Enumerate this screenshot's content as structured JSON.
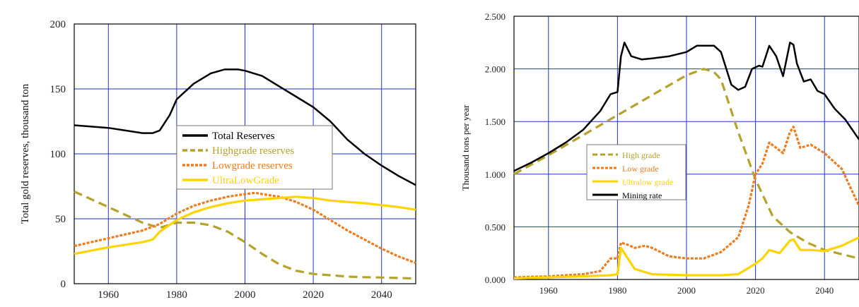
{
  "colors": {
    "total": "#000000",
    "high": "#b5a22c",
    "low": "#f07b1d",
    "ultra": "#ffd400",
    "grid": "#2233cc",
    "axis": "#000000"
  },
  "chart_data": [
    {
      "type": "line",
      "title": "",
      "xlabel": "",
      "ylabel": "Total gold reserves, thousand ton",
      "xlim": [
        1950,
        2050
      ],
      "ylim": [
        0,
        200
      ],
      "x_ticks": [
        1960,
        1980,
        2000,
        2020,
        2040
      ],
      "y_ticks": [
        0,
        50,
        100,
        150,
        200
      ],
      "grid": true,
      "legend_position": "center",
      "series": [
        {
          "name": "Total Reserves",
          "color_key": "total",
          "dash": "solid",
          "points": [
            [
              1950,
              122
            ],
            [
              1955,
              121
            ],
            [
              1960,
              120
            ],
            [
              1965,
              118
            ],
            [
              1970,
              116
            ],
            [
              1973,
              116
            ],
            [
              1975,
              118
            ],
            [
              1978,
              130
            ],
            [
              1980,
              142
            ],
            [
              1985,
              154
            ],
            [
              1990,
              162
            ],
            [
              1994,
              165
            ],
            [
              1998,
              165
            ],
            [
              2000,
              164
            ],
            [
              2005,
              160
            ],
            [
              2010,
              152
            ],
            [
              2015,
              144
            ],
            [
              2020,
              136
            ],
            [
              2025,
              125
            ],
            [
              2030,
              111
            ],
            [
              2035,
              100
            ],
            [
              2040,
              91
            ],
            [
              2045,
              83
            ],
            [
              2050,
              76
            ]
          ]
        },
        {
          "name": "Highgrade reserves",
          "color_key": "high",
          "dash": "dashed",
          "points": [
            [
              1950,
              71
            ],
            [
              1955,
              65
            ],
            [
              1960,
              59
            ],
            [
              1965,
              53
            ],
            [
              1970,
              47
            ],
            [
              1975,
              43
            ],
            [
              1980,
              47
            ],
            [
              1985,
              47
            ],
            [
              1990,
              45
            ],
            [
              1995,
              40
            ],
            [
              2000,
              32
            ],
            [
              2005,
              23
            ],
            [
              2010,
              15
            ],
            [
              2015,
              10
            ],
            [
              2020,
              7.5
            ],
            [
              2025,
              6.5
            ],
            [
              2030,
              5.5
            ],
            [
              2035,
              5
            ],
            [
              2040,
              4.8
            ],
            [
              2045,
              4.4
            ],
            [
              2050,
              4
            ]
          ]
        },
        {
          "name": "Lowgrade reserves",
          "color_key": "low",
          "dash": "dotted",
          "points": [
            [
              1950,
              29
            ],
            [
              1955,
              32
            ],
            [
              1960,
              35
            ],
            [
              1965,
              38
            ],
            [
              1970,
              41
            ],
            [
              1975,
              46
            ],
            [
              1980,
              54
            ],
            [
              1985,
              60
            ],
            [
              1990,
              64
            ],
            [
              1995,
              67
            ],
            [
              2000,
              69
            ],
            [
              2003,
              70
            ],
            [
              2005,
              69
            ],
            [
              2010,
              67
            ],
            [
              2015,
              63
            ],
            [
              2020,
              57
            ],
            [
              2025,
              49
            ],
            [
              2030,
              41
            ],
            [
              2035,
              34
            ],
            [
              2040,
              27
            ],
            [
              2045,
              21
            ],
            [
              2050,
              16
            ]
          ]
        },
        {
          "name": "UltraLowGrade",
          "color_key": "ultra",
          "dash": "solid",
          "points": [
            [
              1950,
              23
            ],
            [
              1955,
              25.5
            ],
            [
              1960,
              28
            ],
            [
              1965,
              30
            ],
            [
              1970,
              32
            ],
            [
              1973,
              34
            ],
            [
              1975,
              40
            ],
            [
              1980,
              49
            ],
            [
              1985,
              55
            ],
            [
              1990,
              59
            ],
            [
              1995,
              62
            ],
            [
              2000,
              64
            ],
            [
              2005,
              65
            ],
            [
              2010,
              66
            ],
            [
              2015,
              67
            ],
            [
              2020,
              66
            ],
            [
              2025,
              64
            ],
            [
              2030,
              63
            ],
            [
              2035,
              62
            ],
            [
              2040,
              60.5
            ],
            [
              2045,
              59
            ],
            [
              2050,
              57
            ]
          ]
        }
      ]
    },
    {
      "type": "line",
      "title": "",
      "xlabel": "",
      "ylabel": "Thousand tons per year",
      "xlim": [
        1950,
        2050
      ],
      "ylim": [
        0,
        2.5
      ],
      "x_ticks": [
        1960,
        1980,
        2000,
        2020,
        2040
      ],
      "y_tick_labels": [
        "0.000",
        "0.500",
        "1.000",
        "1.500",
        "2.000",
        "2.500"
      ],
      "y_ticks": [
        0,
        0.5,
        1.0,
        1.5,
        2.0,
        2.5
      ],
      "grid": true,
      "legend_position": "center-left",
      "series": [
        {
          "name": "High grade",
          "color_key": "high",
          "dash": "dashed",
          "points": [
            [
              1950,
              1.0
            ],
            [
              1960,
              1.18
            ],
            [
              1970,
              1.37
            ],
            [
              1980,
              1.56
            ],
            [
              1990,
              1.75
            ],
            [
              2000,
              1.94
            ],
            [
              2005,
              2.0
            ],
            [
              2008,
              1.97
            ],
            [
              2010,
              1.9
            ],
            [
              2013,
              1.6
            ],
            [
              2015,
              1.4
            ],
            [
              2020,
              0.95
            ],
            [
              2025,
              0.6
            ],
            [
              2030,
              0.45
            ],
            [
              2035,
              0.35
            ],
            [
              2040,
              0.28
            ],
            [
              2045,
              0.24
            ],
            [
              2050,
              0.2
            ]
          ]
        },
        {
          "name": "Low grade",
          "color_key": "low",
          "dash": "dotted",
          "points": [
            [
              1950,
              0.02
            ],
            [
              1960,
              0.03
            ],
            [
              1970,
              0.05
            ],
            [
              1975,
              0.08
            ],
            [
              1978,
              0.2
            ],
            [
              1980,
              0.2
            ],
            [
              1981,
              0.35
            ],
            [
              1983,
              0.33
            ],
            [
              1985,
              0.3
            ],
            [
              1988,
              0.32
            ],
            [
              1990,
              0.3
            ],
            [
              1995,
              0.22
            ],
            [
              2000,
              0.2
            ],
            [
              2005,
              0.2
            ],
            [
              2010,
              0.26
            ],
            [
              2015,
              0.4
            ],
            [
              2018,
              0.7
            ],
            [
              2020,
              1.0
            ],
            [
              2022,
              1.1
            ],
            [
              2024,
              1.3
            ],
            [
              2026,
              1.25
            ],
            [
              2028,
              1.2
            ],
            [
              2030,
              1.4
            ],
            [
              2031,
              1.45
            ],
            [
              2033,
              1.25
            ],
            [
              2036,
              1.28
            ],
            [
              2040,
              1.2
            ],
            [
              2045,
              1.05
            ],
            [
              2050,
              0.7
            ]
          ]
        },
        {
          "name": "Ultralow grade",
          "color_key": "ultra",
          "dash": "solid",
          "points": [
            [
              1950,
              0.01
            ],
            [
              1960,
              0.02
            ],
            [
              1970,
              0.03
            ],
            [
              1978,
              0.04
            ],
            [
              1980,
              0.05
            ],
            [
              1981,
              0.3
            ],
            [
              1983,
              0.2
            ],
            [
              1985,
              0.1
            ],
            [
              1990,
              0.05
            ],
            [
              2000,
              0.04
            ],
            [
              2010,
              0.04
            ],
            [
              2015,
              0.05
            ],
            [
              2020,
              0.15
            ],
            [
              2022,
              0.2
            ],
            [
              2024,
              0.28
            ],
            [
              2027,
              0.25
            ],
            [
              2030,
              0.37
            ],
            [
              2031,
              0.38
            ],
            [
              2033,
              0.28
            ],
            [
              2036,
              0.28
            ],
            [
              2040,
              0.27
            ],
            [
              2045,
              0.32
            ],
            [
              2050,
              0.4
            ]
          ]
        },
        {
          "name": "Mining rate",
          "color_key": "total",
          "dash": "solid",
          "points": [
            [
              1950,
              1.03
            ],
            [
              1955,
              1.11
            ],
            [
              1960,
              1.2
            ],
            [
              1965,
              1.3
            ],
            [
              1970,
              1.42
            ],
            [
              1975,
              1.6
            ],
            [
              1978,
              1.76
            ],
            [
              1980,
              1.78
            ],
            [
              1981,
              2.12
            ],
            [
              1982,
              2.25
            ],
            [
              1984,
              2.12
            ],
            [
              1987,
              2.09
            ],
            [
              1990,
              2.1
            ],
            [
              1995,
              2.12
            ],
            [
              2000,
              2.16
            ],
            [
              2003,
              2.22
            ],
            [
              2008,
              2.22
            ],
            [
              2010,
              2.16
            ],
            [
              2013,
              1.85
            ],
            [
              2015,
              1.8
            ],
            [
              2017,
              1.83
            ],
            [
              2019,
              2.0
            ],
            [
              2021,
              2.03
            ],
            [
              2022,
              2.02
            ],
            [
              2024,
              2.22
            ],
            [
              2026,
              2.12
            ],
            [
              2028,
              1.93
            ],
            [
              2030,
              2.25
            ],
            [
              2031,
              2.23
            ],
            [
              2032,
              2.05
            ],
            [
              2034,
              1.88
            ],
            [
              2036,
              1.9
            ],
            [
              2038,
              1.79
            ],
            [
              2040,
              1.76
            ],
            [
              2043,
              1.62
            ],
            [
              2046,
              1.52
            ],
            [
              2050,
              1.33
            ]
          ]
        }
      ]
    }
  ]
}
